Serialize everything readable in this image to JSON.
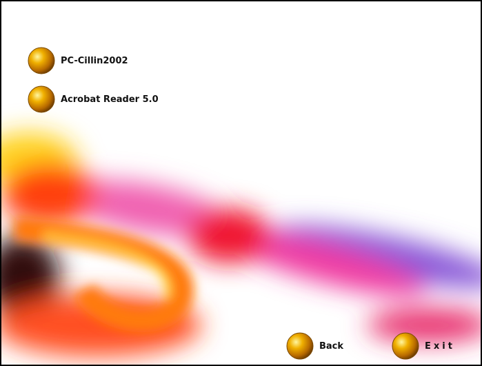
{
  "menu": [
    "PC-Cillin2002",
    "Acrobat Reader 5.0"
  ],
  "buttons": [
    "Back",
    "Exit"
  ]
}
